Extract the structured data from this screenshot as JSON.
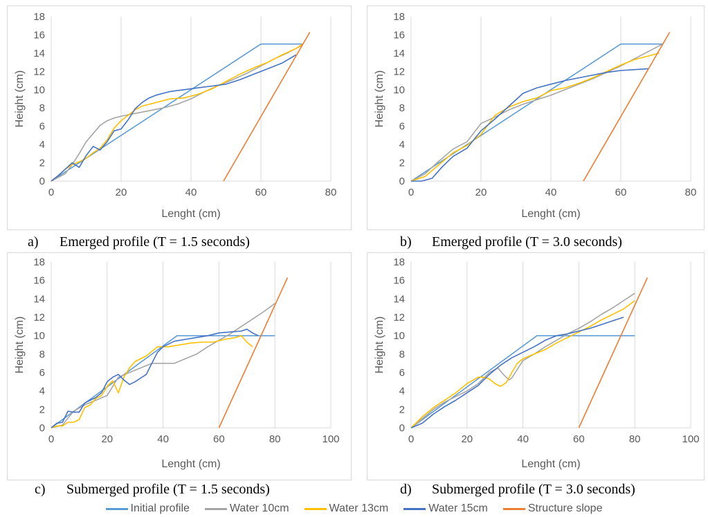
{
  "colors": {
    "initial_profile": "#5B9BD5",
    "water_10cm": "#A5A5A5",
    "water_13cm": "#FFC000",
    "water_15cm": "#4472C4",
    "structure_slope": "#ED7D31",
    "grid": "#d9d9d9",
    "axis_text": "#595959"
  },
  "legend": [
    {
      "key": "initial_profile",
      "label": "Initial profile"
    },
    {
      "key": "water_10cm",
      "label": "Water 10cm"
    },
    {
      "key": "water_13cm",
      "label": "Water 13cm"
    },
    {
      "key": "water_15cm",
      "label": "Water 15cm"
    },
    {
      "key": "structure_slope",
      "label": "Structure slope"
    }
  ],
  "captions": {
    "a": {
      "letter": "a)",
      "text": "Emerged profile (T = 1.5 seconds)"
    },
    "b": {
      "letter": "b)",
      "text": "Emerged profile (T = 3.0 seconds)"
    },
    "c": {
      "letter": "c)",
      "text": "Submerged profile (T = 1.5 seconds)"
    },
    "d": {
      "letter": "d)",
      "text": "Submerged profile (T = 3.0 seconds)"
    }
  },
  "chart_data": [
    {
      "id": "a",
      "type": "line",
      "xlabel": "Lenght (cm)",
      "ylabel": "Height (cm)",
      "xlim": [
        0,
        80
      ],
      "ylim": [
        0,
        18
      ],
      "xticks": [
        0,
        20,
        40,
        60,
        80
      ],
      "yticks": [
        0,
        2,
        4,
        6,
        8,
        10,
        12,
        14,
        16,
        18
      ],
      "grid": "vertical",
      "series": [
        {
          "name": "Initial profile",
          "key": "initial_profile",
          "x": [
            0,
            60,
            72
          ],
          "y": [
            0,
            15,
            15
          ]
        },
        {
          "name": "Water 10cm",
          "key": "water_10cm",
          "x": [
            0,
            4,
            6,
            8,
            10,
            12,
            14,
            16,
            18,
            20,
            24,
            28,
            32,
            36,
            40,
            44,
            48,
            52,
            56,
            60,
            64,
            68,
            72
          ],
          "y": [
            0,
            0.8,
            1.8,
            3,
            4.3,
            5.2,
            6.1,
            6.6,
            6.9,
            7.1,
            7.4,
            7.7,
            8,
            8.4,
            9,
            9.8,
            10.5,
            11.1,
            11.8,
            12.6,
            13.4,
            14.1,
            14.9
          ]
        },
        {
          "name": "Water 13cm",
          "key": "water_13cm",
          "x": [
            0,
            2,
            4,
            6,
            8,
            10,
            12,
            14,
            16,
            18,
            20,
            22,
            24,
            26,
            28,
            30,
            34,
            38,
            42,
            46,
            50,
            54,
            58,
            62,
            66,
            70,
            72
          ],
          "y": [
            0,
            0.6,
            1.3,
            1.8,
            2.1,
            2.5,
            3.1,
            3.6,
            4.5,
            5.8,
            6.6,
            7.2,
            7.8,
            8.2,
            8.4,
            8.6,
            9,
            9.1,
            9.5,
            10.1,
            10.9,
            11.7,
            12.4,
            13,
            13.8,
            14.5,
            15
          ]
        },
        {
          "name": "Water 15cm",
          "key": "water_15cm",
          "x": [
            0,
            2,
            4,
            6,
            8,
            10,
            12,
            14,
            16,
            18,
            20,
            22,
            24,
            26,
            28,
            30,
            34,
            38,
            42,
            46,
            50,
            54,
            58,
            62,
            66,
            70
          ],
          "y": [
            0,
            0.6,
            1.3,
            2,
            1.5,
            2.8,
            3.8,
            3.4,
            4.3,
            5.5,
            5.7,
            6.7,
            7.9,
            8.6,
            9.1,
            9.4,
            9.8,
            10,
            10.2,
            10.4,
            10.6,
            11.1,
            11.7,
            12.3,
            12.9,
            13.8
          ]
        },
        {
          "name": "Structure slope",
          "key": "structure_slope",
          "x": [
            49.3,
            74
          ],
          "y": [
            0,
            16.3
          ]
        }
      ]
    },
    {
      "id": "b",
      "type": "line",
      "xlabel": "Lenght (cm)",
      "ylabel": "Height (cm)",
      "xlim": [
        0,
        80
      ],
      "ylim": [
        0,
        18
      ],
      "xticks": [
        0,
        20,
        40,
        60,
        80
      ],
      "yticks": [
        0,
        2,
        4,
        6,
        8,
        10,
        12,
        14,
        16,
        18
      ],
      "grid": "vertical",
      "series": [
        {
          "name": "Initial profile",
          "key": "initial_profile",
          "x": [
            0,
            60,
            72
          ],
          "y": [
            0,
            15,
            15
          ]
        },
        {
          "name": "Water 10cm",
          "key": "water_10cm",
          "x": [
            0,
            4,
            8,
            12,
            16,
            20,
            24,
            28,
            32,
            36,
            40,
            44,
            48,
            52,
            56,
            60,
            64,
            68,
            72
          ],
          "y": [
            0,
            0.8,
            2.2,
            3.5,
            4.3,
            6.3,
            7,
            7.8,
            8.4,
            8.9,
            9.4,
            10,
            10.6,
            11.2,
            11.9,
            12.6,
            13.4,
            14.2,
            15
          ]
        },
        {
          "name": "Water 13cm",
          "key": "water_13cm",
          "x": [
            0,
            4,
            8,
            12,
            16,
            20,
            24,
            28,
            32,
            36,
            40,
            44,
            48,
            52,
            56,
            60,
            64,
            68,
            71
          ],
          "y": [
            0,
            0.5,
            1.8,
            3.1,
            3.9,
            5.1,
            7.2,
            8.1,
            8.7,
            9.1,
            9.9,
            10.2,
            10.7,
            11.3,
            12,
            12.7,
            13.3,
            13.7,
            14
          ]
        },
        {
          "name": "Water 15cm",
          "key": "water_15cm",
          "x": [
            0,
            3,
            6,
            9,
            12,
            16,
            20,
            24,
            28,
            32,
            36,
            40,
            44,
            48,
            52,
            56,
            60,
            64,
            68
          ],
          "y": [
            0,
            0,
            0.3,
            1.6,
            2.7,
            3.6,
            5.5,
            6.8,
            8.2,
            9.6,
            10.2,
            10.6,
            11,
            11.3,
            11.6,
            11.9,
            12.1,
            12.2,
            12.3
          ]
        },
        {
          "name": "Structure slope",
          "key": "structure_slope",
          "x": [
            49.3,
            74
          ],
          "y": [
            0,
            16.3
          ]
        }
      ]
    },
    {
      "id": "c",
      "type": "line",
      "xlabel": "Lenght (cm)",
      "ylabel": "Height (cm)",
      "xlim": [
        0,
        100
      ],
      "ylim": [
        0,
        18
      ],
      "xticks": [
        0,
        20,
        40,
        60,
        80,
        100
      ],
      "yticks": [
        0,
        2,
        4,
        6,
        8,
        10,
        12,
        14,
        16,
        18
      ],
      "grid": "vertical",
      "series": [
        {
          "name": "Initial profile",
          "key": "initial_profile",
          "x": [
            0,
            45,
            80
          ],
          "y": [
            0,
            10,
            10
          ]
        },
        {
          "name": "Water 10cm",
          "key": "water_10cm",
          "x": [
            0,
            4,
            8,
            12,
            16,
            20,
            24,
            28,
            32,
            36,
            40,
            44,
            48,
            52,
            56,
            60,
            64,
            68,
            72,
            76,
            80
          ],
          "y": [
            0,
            0.3,
            1.8,
            2.5,
            3,
            3.5,
            5.5,
            6,
            6.5,
            7,
            7,
            7,
            7.5,
            8,
            8.8,
            9.5,
            10.2,
            11,
            11.8,
            12.6,
            13.5
          ]
        },
        {
          "name": "Water 13cm",
          "key": "water_13cm",
          "x": [
            0,
            2,
            4,
            6,
            8,
            10,
            12,
            14,
            16,
            18,
            20,
            22,
            24,
            26,
            28,
            30,
            34,
            38,
            42,
            46,
            50,
            54,
            58,
            62,
            66,
            68,
            70,
            72
          ],
          "y": [
            0,
            0.2,
            0.2,
            0.6,
            0.6,
            0.9,
            2.2,
            2.5,
            3.2,
            3.5,
            4.5,
            5.1,
            3.8,
            5.5,
            6.5,
            7.2,
            7.8,
            8.8,
            8.8,
            9,
            9.2,
            9.3,
            9.3,
            9.6,
            9.8,
            10,
            9.3,
            8.8
          ]
        },
        {
          "name": "Water 15cm",
          "key": "water_15cm",
          "x": [
            0,
            2,
            4,
            6,
            8,
            10,
            12,
            14,
            16,
            18,
            20,
            22,
            24,
            26,
            28,
            30,
            32,
            34,
            36,
            38,
            40,
            44,
            48,
            52,
            56,
            60,
            64,
            68,
            70,
            72,
            74
          ],
          "y": [
            0,
            0.5,
            0.6,
            1.8,
            1.7,
            1.7,
            2.7,
            3,
            3.3,
            3.8,
            5,
            5.5,
            5.8,
            5.2,
            4.7,
            5,
            5.4,
            5.8,
            7,
            8.2,
            8.8,
            9.4,
            9.6,
            9.8,
            10,
            10.3,
            10.4,
            10.5,
            10.7,
            10.3,
            10
          ]
        },
        {
          "name": "Structure slope",
          "key": "structure_slope",
          "x": [
            60,
            84.5
          ],
          "y": [
            0,
            16.3
          ]
        }
      ]
    },
    {
      "id": "d",
      "type": "line",
      "xlabel": "Lenght (cm)",
      "ylabel": "Height (cm)",
      "xlim": [
        0,
        100
      ],
      "ylim": [
        0,
        18
      ],
      "xticks": [
        0,
        20,
        40,
        60,
        80,
        100
      ],
      "yticks": [
        0,
        2,
        4,
        6,
        8,
        10,
        12,
        14,
        16,
        18
      ],
      "grid": "vertical",
      "series": [
        {
          "name": "Initial profile",
          "key": "initial_profile",
          "x": [
            0,
            45,
            80
          ],
          "y": [
            0,
            10,
            10
          ]
        },
        {
          "name": "Water 10cm",
          "key": "water_10cm",
          "x": [
            0,
            4,
            8,
            12,
            16,
            20,
            24,
            28,
            31,
            33,
            35,
            36,
            40,
            44,
            48,
            52,
            56,
            60,
            64,
            68,
            72,
            76,
            80
          ],
          "y": [
            0,
            1,
            2,
            2.8,
            3.4,
            4,
            4.8,
            6,
            6.5,
            5.8,
            5.2,
            5.4,
            7.3,
            8,
            8.8,
            9.5,
            10.2,
            10.8,
            11.5,
            12.3,
            13,
            13.8,
            14.6
          ]
        },
        {
          "name": "Water 13cm",
          "key": "water_13cm",
          "x": [
            0,
            4,
            8,
            12,
            16,
            20,
            24,
            26,
            28,
            30,
            32,
            34,
            36,
            38,
            40,
            44,
            48,
            52,
            56,
            60,
            64,
            68,
            72,
            76,
            80
          ],
          "y": [
            0,
            1.2,
            2.2,
            3,
            3.8,
            4.8,
            5.5,
            5.5,
            5.3,
            4.8,
            4.5,
            4.9,
            6,
            7,
            7.5,
            8,
            8.5,
            9.2,
            9.8,
            10.4,
            11,
            11.7,
            12.3,
            12.9,
            13.8
          ]
        },
        {
          "name": "Water 15cm",
          "key": "water_15cm",
          "x": [
            0,
            4,
            8,
            12,
            16,
            20,
            24,
            28,
            32,
            36,
            40,
            44,
            48,
            52,
            56,
            60,
            64,
            68,
            72,
            76
          ],
          "y": [
            0,
            0.5,
            1.5,
            2.3,
            3,
            3.8,
            4.6,
            5.8,
            6.8,
            7.6,
            8.2,
            8.8,
            9.5,
            10,
            10.2,
            10.5,
            10.8,
            11.2,
            11.6,
            12
          ]
        },
        {
          "name": "Structure slope",
          "key": "structure_slope",
          "x": [
            60,
            84.5
          ],
          "y": [
            0,
            16.3
          ]
        }
      ]
    }
  ]
}
